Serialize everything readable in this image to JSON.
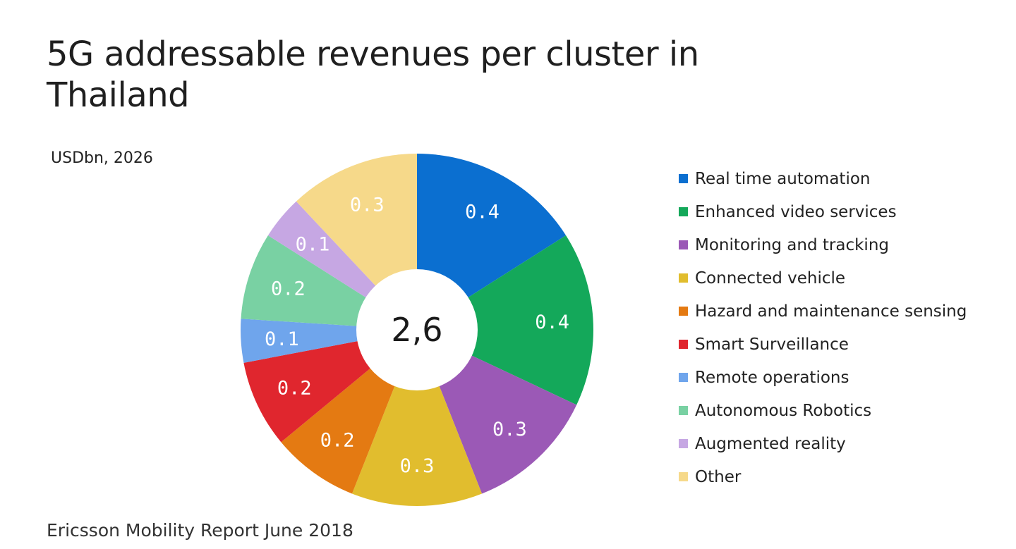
{
  "title": "5G addressable revenues per cluster in Thailand",
  "unit_label": "USDbn, 2026",
  "source": "Ericsson Mobility Report June 2018",
  "chart_data": {
    "type": "pie",
    "variant": "donut",
    "center_label": "2,6",
    "categories": [
      "Real time automation",
      "Enhanced video services",
      "Monitoring and tracking",
      "Connected vehicle",
      "Hazard and maintenance sensing",
      "Smart Surveillance",
      "Remote operations",
      "Autonomous Robotics",
      "Augmented reality",
      "Other"
    ],
    "values": [
      0.4,
      0.4,
      0.3,
      0.3,
      0.2,
      0.2,
      0.1,
      0.2,
      0.1,
      0.3
    ],
    "value_labels": [
      "0.4",
      "0.4",
      "0.3",
      "0.3",
      "0.2",
      "0.2",
      "0.1",
      "0.2",
      "0.1",
      "0.3"
    ],
    "colors": [
      "#0b6fd0",
      "#14a85a",
      "#9b59b6",
      "#e1bd2e",
      "#e47a12",
      "#e0262e",
      "#6fa5ec",
      "#79d1a3",
      "#c6a7e3",
      "#f6d98a"
    ],
    "legend_placement": "right"
  }
}
